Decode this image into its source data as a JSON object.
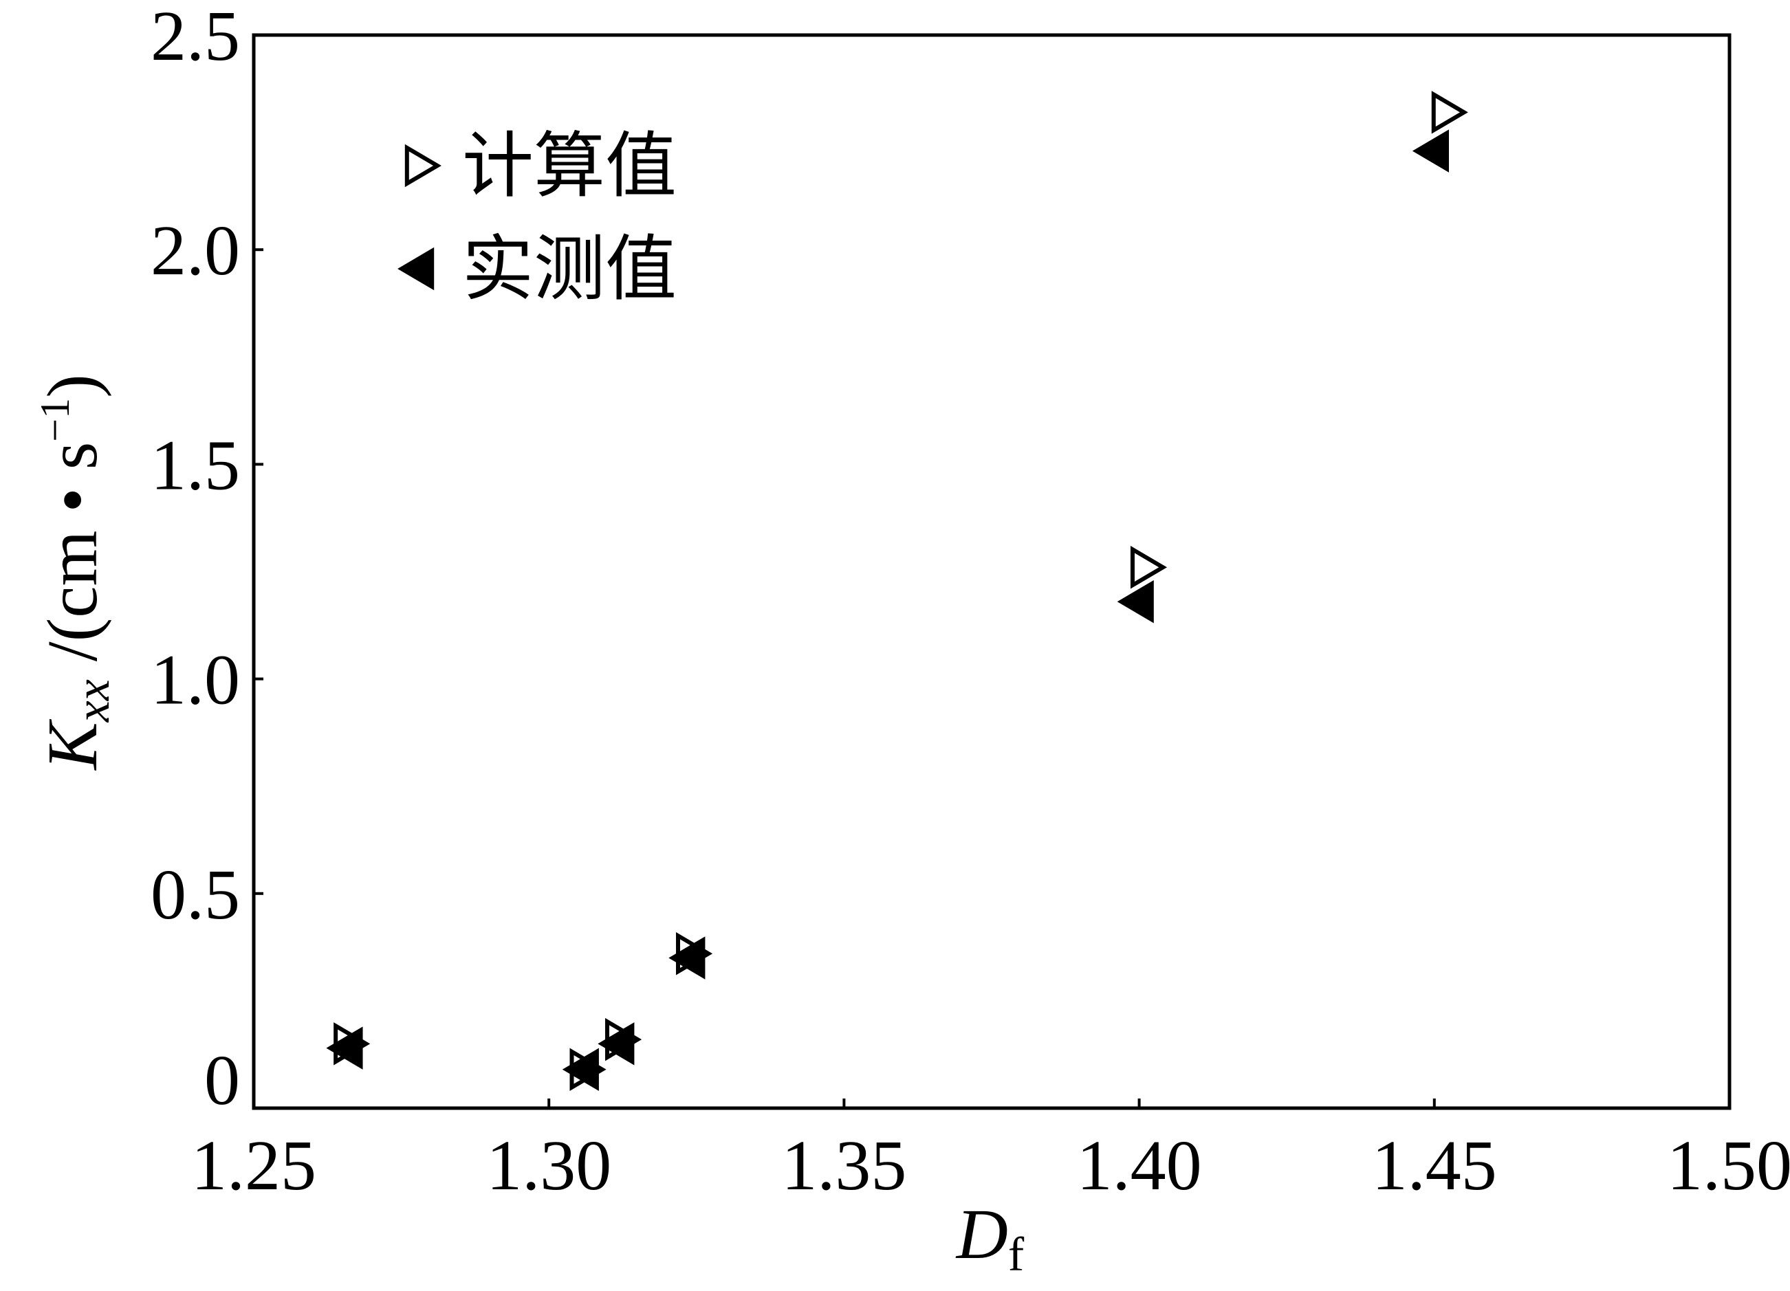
{
  "chart_data": {
    "type": "scatter",
    "x_label": {
      "main": "D",
      "sub": "f"
    },
    "y_label": {
      "main": "K",
      "sub": "xx",
      "unit": " /(cm • s",
      "sup": "−1",
      "close": ")"
    },
    "series": [
      {
        "name": "计算值",
        "color": "#000000",
        "marker": "triangle-right",
        "filled": false,
        "x": [
          1.266,
          1.306,
          1.312,
          1.324,
          1.401,
          1.452
        ],
        "values": [
          0.15,
          0.09,
          0.16,
          0.36,
          1.26,
          2.32
        ]
      },
      {
        "name": "实测值",
        "color": "#000000",
        "marker": "triangle-left",
        "filled": true,
        "x": [
          1.266,
          1.306,
          1.312,
          1.324,
          1.4,
          1.45
        ],
        "values": [
          0.14,
          0.09,
          0.15,
          0.35,
          1.18,
          2.23
        ]
      }
    ],
    "xlim": [
      1.25,
      1.5
    ],
    "xticks": [
      1.25,
      {
        "value": 1.3,
        "label": "1.30"
      },
      1.35,
      {
        "value": 1.4,
        "label": "1.40"
      },
      1.45,
      {
        "value": 1.5,
        "label": "1.50"
      }
    ],
    "ylim": [
      0,
      2.5
    ],
    "yticks": [
      0,
      0.5,
      {
        "value": 1,
        "label": "1.0"
      },
      1.5,
      {
        "value": 2,
        "label": "2.0"
      },
      2.5
    ],
    "legend": "upper left",
    "grid": false
  }
}
